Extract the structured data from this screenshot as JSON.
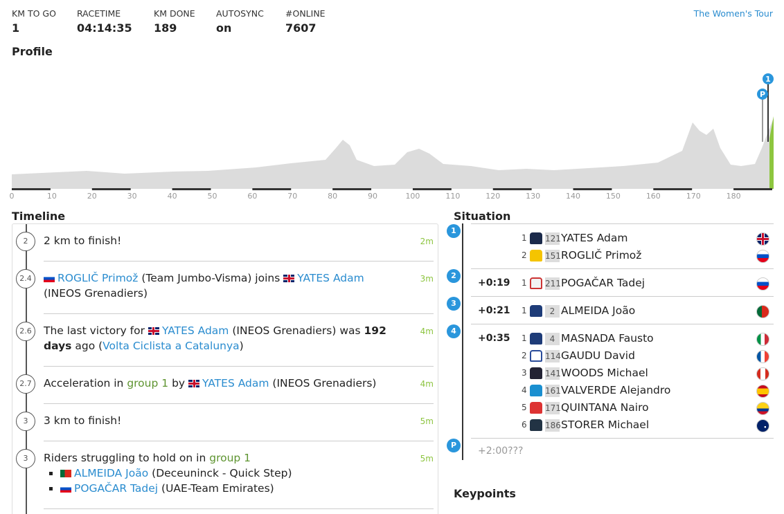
{
  "header": {
    "stats": [
      {
        "label": "KM TO GO",
        "value": "1"
      },
      {
        "label": "RACETIME",
        "value": "04:14:35"
      },
      {
        "label": "KM DONE",
        "value": "189"
      },
      {
        "label": "AUTOSYNC",
        "value": "on"
      },
      {
        "label": "#ONLINE",
        "value": "7607"
      }
    ],
    "race": "The Women's Tour"
  },
  "profile": {
    "title": "Profile",
    "xlim": [
      0,
      190
    ],
    "xticks": [
      0,
      10,
      20,
      30,
      40,
      50,
      60,
      70,
      80,
      90,
      100,
      110,
      120,
      130,
      140,
      150,
      160,
      170,
      180
    ],
    "markers": [
      "P",
      "1"
    ]
  },
  "timeline": {
    "title": "Timeline",
    "items": [
      {
        "km": "2",
        "time": "2m",
        "parts": [
          "2 km to finish!"
        ]
      },
      {
        "km": "2.4",
        "time": "3m",
        "parts": [
          "ROGLIČ Primož",
          "(Team Jumbo-Visma) joins",
          "YATES Adam",
          "(INEOS Grenadiers)"
        ]
      },
      {
        "km": "2.6",
        "time": "4m",
        "parts": [
          "The last victory for",
          "YATES Adam",
          "(INEOS Grenadiers) was",
          "192 days",
          "ago (",
          "Volta Ciclista a Catalunya",
          ")"
        ]
      },
      {
        "km": "2.7",
        "time": "4m",
        "parts": [
          "Acceleration in",
          "group 1",
          "by",
          "YATES Adam",
          "(INEOS Grenadiers)"
        ]
      },
      {
        "km": "3",
        "time": "5m",
        "parts": [
          "3 km to finish!"
        ]
      },
      {
        "km": "3",
        "time": "5m",
        "parts": [
          "Riders struggling to hold on in",
          "group 1"
        ],
        "list": [
          [
            "ALMEIDA João",
            "(Deceuninck - Quick Step)"
          ],
          [
            "POGAČAR Tadej",
            "(UAE-Team Emirates)"
          ]
        ]
      }
    ]
  },
  "situation": {
    "title": "Situation",
    "groups": [
      {
        "marker": "1",
        "riders": [
          {
            "pos": 1,
            "bib": 121,
            "name": "YATES Adam"
          },
          {
            "pos": 2,
            "bib": 151,
            "name": "ROGLIČ Primož"
          }
        ]
      },
      {
        "marker": "2",
        "gap": "+0:19",
        "riders": [
          {
            "pos": 1,
            "bib": 211,
            "name": "POGAČAR Tadej"
          }
        ]
      },
      {
        "marker": "3",
        "gap": "+0:21",
        "riders": [
          {
            "pos": 1,
            "bib": 2,
            "name": "ALMEIDA João"
          }
        ]
      },
      {
        "marker": "4",
        "gap": "+0:35",
        "riders": [
          {
            "pos": 1,
            "bib": 4,
            "name": "MASNADA Fausto"
          },
          {
            "pos": 2,
            "bib": 114,
            "name": "GAUDU David"
          },
          {
            "pos": 3,
            "bib": 141,
            "name": "WOODS Michael"
          },
          {
            "pos": 4,
            "bib": 161,
            "name": "VALVERDE Alejandro"
          },
          {
            "pos": 5,
            "bib": 171,
            "name": "QUINTANA Nairo"
          },
          {
            "pos": 6,
            "bib": 186,
            "name": "STORER Michael"
          }
        ]
      }
    ],
    "peloton": {
      "marker": "P",
      "gap": "+2:00???"
    }
  },
  "keypoints": {
    "title": "Keypoints"
  }
}
